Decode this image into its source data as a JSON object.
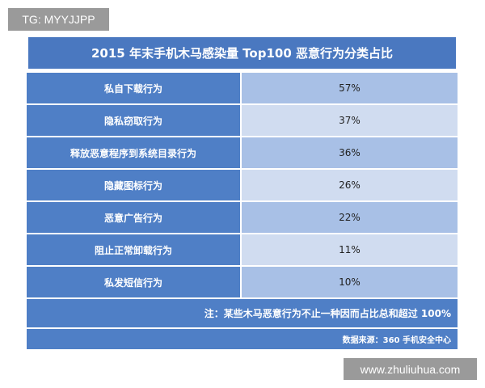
{
  "watermark_top": "TG: MYYJJPP",
  "table": {
    "title": "2015 年末手机木马感染量 Top100 恶意行为分类占比",
    "rows": [
      [
        "私自下载行为",
        "57%"
      ],
      [
        "隐私窃取行为",
        "37%"
      ],
      [
        "释放恶意程序到系统目录行为",
        "36%"
      ],
      [
        "隐藏图标行为",
        "26%"
      ],
      [
        "恶意广告行为",
        "22%"
      ],
      [
        "阻止正常卸载行为",
        "11%"
      ],
      [
        "私发短信行为",
        "10%"
      ]
    ],
    "note": "注：某些木马恶意行为不止一种因而占比总和超过 100%",
    "source": "数据来源：360 手机安全中心"
  },
  "watermark_bottom": "www.zhuliuhua.com"
}
